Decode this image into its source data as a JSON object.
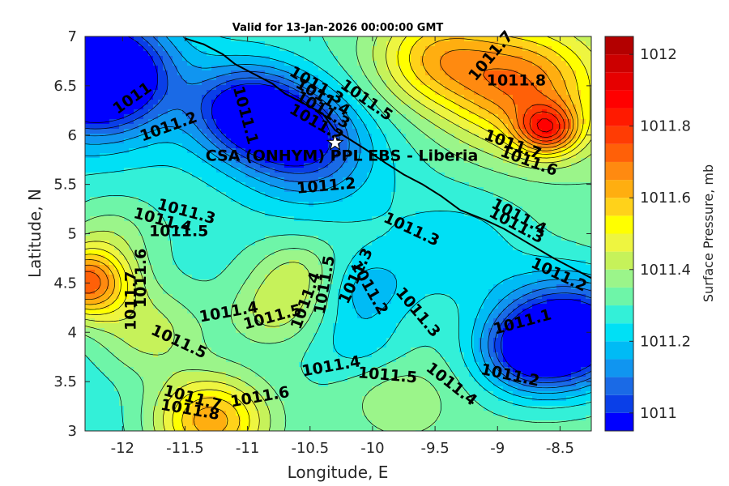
{
  "title": "Valid for 13-Jan-2026 00:00:00 GMT",
  "chart_data": {
    "type": "contour-map",
    "xlabel": "Longitude, E",
    "ylabel": "Latitude, N",
    "xlim": [
      -12.3,
      -8.25
    ],
    "ylim": [
      3,
      7
    ],
    "x_ticks": [
      "-12",
      "-11.5",
      "-11",
      "-10.5",
      "-10",
      "-9.5",
      "-9",
      "-8.5"
    ],
    "x_tick_values": [
      -12,
      -11.5,
      -11,
      -10.5,
      -10,
      -9.5,
      -9,
      -8.5
    ],
    "y_ticks": [
      "3",
      "3.5",
      "4",
      "4.5",
      "5",
      "5.5",
      "6",
      "6.5",
      "7"
    ],
    "y_tick_values": [
      3,
      3.5,
      4,
      4.5,
      5,
      5.5,
      6,
      6.5,
      7
    ],
    "colorbar": {
      "label": "Surface Pressure, mb",
      "range": [
        1010.95,
        1012.05
      ],
      "ticks": [
        "1011",
        "1011.2",
        "1011.4",
        "1011.6",
        "1011.8",
        "1012"
      ],
      "tick_values": [
        1011,
        1011.2,
        1011.4,
        1011.6,
        1011.8,
        1012
      ],
      "levels": [
        1010.95,
        1011.0,
        1011.05,
        1011.1,
        1011.15,
        1011.2,
        1011.25,
        1011.3,
        1011.35,
        1011.4,
        1011.45,
        1011.5,
        1011.55,
        1011.6,
        1011.65,
        1011.7,
        1011.75,
        1011.8,
        1011.85,
        1011.9,
        1011.95,
        1012.0,
        1012.05
      ],
      "colors": [
        "#0000ff",
        "#0a3fe8",
        "#1a6ae6",
        "#1095f0",
        "#00bbf5",
        "#00e0f5",
        "#33f0d8",
        "#6ef5a8",
        "#9bf58a",
        "#c6f25a",
        "#eef540",
        "#ffff00",
        "#ffd21a",
        "#ffae10",
        "#ff8a10",
        "#ff6008",
        "#ff3c04",
        "#ff1a00",
        "#ff0000",
        "#e60000",
        "#cc0000",
        "#b30000"
      ]
    },
    "site": {
      "label": "CSA (ONHYM) PPL EBS  - Liberia",
      "lon": -10.3,
      "lat": 5.92,
      "marker": "star"
    },
    "contour_labels": [
      {
        "text": "1011",
        "lon": -11.92,
        "lat": 6.37,
        "angle": -35
      },
      {
        "text": "1011.2",
        "lon": -11.63,
        "lat": 6.08,
        "angle": -20
      },
      {
        "text": "1011.1",
        "lon": -11.02,
        "lat": 6.2,
        "angle": 75
      },
      {
        "text": "1011.3",
        "lon": -10.45,
        "lat": 6.5,
        "angle": 30
      },
      {
        "text": "1011.4",
        "lon": -10.4,
        "lat": 6.38,
        "angle": 30
      },
      {
        "text": "1011.3",
        "lon": -10.4,
        "lat": 6.25,
        "angle": 30
      },
      {
        "text": "1011.2",
        "lon": -10.45,
        "lat": 6.12,
        "angle": 30
      },
      {
        "text": "1011.5",
        "lon": -10.05,
        "lat": 6.35,
        "angle": 35
      },
      {
        "text": "1011.7",
        "lon": -9.05,
        "lat": 6.8,
        "angle": -50
      },
      {
        "text": "1011.8",
        "lon": -8.85,
        "lat": 6.55,
        "angle": 0
      },
      {
        "text": "1011.7",
        "lon": -8.88,
        "lat": 5.9,
        "angle": 20
      },
      {
        "text": "1011.6",
        "lon": -8.75,
        "lat": 5.73,
        "angle": 20
      },
      {
        "text": "1011.2",
        "lon": -10.37,
        "lat": 5.48,
        "angle": -5
      },
      {
        "text": "1011.3",
        "lon": -11.49,
        "lat": 5.22,
        "angle": 15
      },
      {
        "text": "1011.4",
        "lon": -11.68,
        "lat": 5.13,
        "angle": 15
      },
      {
        "text": "1011.5",
        "lon": -11.55,
        "lat": 5.02,
        "angle": 0
      },
      {
        "text": "1011.3",
        "lon": -9.69,
        "lat": 5.04,
        "angle": 25
      },
      {
        "text": "1011.4",
        "lon": -8.83,
        "lat": 5.17,
        "angle": 28
      },
      {
        "text": "1011.3",
        "lon": -8.85,
        "lat": 5.08,
        "angle": 28
      },
      {
        "text": "1011.2",
        "lon": -8.51,
        "lat": 4.58,
        "angle": 25
      },
      {
        "text": "1011.6",
        "lon": -11.85,
        "lat": 4.55,
        "angle": -90
      },
      {
        "text": "1011.7",
        "lon": -11.93,
        "lat": 4.32,
        "angle": -90
      },
      {
        "text": "1011.5",
        "lon": -10.38,
        "lat": 4.48,
        "angle": -80
      },
      {
        "text": "1011.3",
        "lon": -10.13,
        "lat": 4.57,
        "angle": -65
      },
      {
        "text": "1011.2",
        "lon": -10.03,
        "lat": 4.45,
        "angle": 60
      },
      {
        "text": "1011.4",
        "lon": -10.53,
        "lat": 4.32,
        "angle": -70
      },
      {
        "text": "1011.4",
        "lon": -11.15,
        "lat": 4.2,
        "angle": -10
      },
      {
        "text": "1011.5",
        "lon": -10.8,
        "lat": 4.15,
        "angle": -15
      },
      {
        "text": "1011.3",
        "lon": -9.64,
        "lat": 4.2,
        "angle": 50
      },
      {
        "text": "1011.1",
        "lon": -8.8,
        "lat": 4.1,
        "angle": -15
      },
      {
        "text": "1011.5",
        "lon": -11.55,
        "lat": 3.9,
        "angle": 25
      },
      {
        "text": "1011.4",
        "lon": -10.33,
        "lat": 3.65,
        "angle": -10
      },
      {
        "text": "1011.5",
        "lon": -9.88,
        "lat": 3.56,
        "angle": 5
      },
      {
        "text": "1011.4",
        "lon": -9.37,
        "lat": 3.47,
        "angle": 38
      },
      {
        "text": "1011.2",
        "lon": -8.9,
        "lat": 3.56,
        "angle": 12
      },
      {
        "text": "1011.6",
        "lon": -10.9,
        "lat": 3.34,
        "angle": -10
      },
      {
        "text": "1011.7",
        "lon": -11.44,
        "lat": 3.33,
        "angle": 15
      },
      {
        "text": "1011.8",
        "lon": -11.46,
        "lat": 3.21,
        "angle": 10
      }
    ],
    "field_sources": [
      {
        "lon": -12.2,
        "lat": 6.6,
        "amp": -0.55,
        "r": 0.55
      },
      {
        "lon": -11.0,
        "lat": 6.25,
        "amp": -0.35,
        "r": 0.45
      },
      {
        "lon": -10.6,
        "lat": 6.0,
        "amp": -0.25,
        "r": 0.45
      },
      {
        "lon": -10.4,
        "lat": 5.7,
        "amp": -0.12,
        "r": 0.6
      },
      {
        "lon": -8.4,
        "lat": 4.0,
        "amp": -0.45,
        "r": 0.55
      },
      {
        "lon": -8.75,
        "lat": 3.8,
        "amp": -0.25,
        "r": 0.4
      },
      {
        "lon": -9.3,
        "lat": 4.85,
        "amp": -0.1,
        "r": 0.6
      },
      {
        "lon": -10.05,
        "lat": 4.45,
        "amp": -0.12,
        "r": 0.35
      },
      {
        "lon": -10.1,
        "lat": 3.9,
        "amp": -0.08,
        "r": 0.35
      },
      {
        "lon": -8.8,
        "lat": 6.5,
        "amp": 0.35,
        "r": 0.6
      },
      {
        "lon": -9.5,
        "lat": 6.8,
        "amp": 0.25,
        "r": 0.5
      },
      {
        "lon": -8.6,
        "lat": 6.05,
        "amp": 0.35,
        "r": 0.25
      },
      {
        "lon": -12.3,
        "lat": 4.5,
        "amp": 0.45,
        "r": 0.35
      },
      {
        "lon": -11.8,
        "lat": 4.0,
        "amp": 0.15,
        "r": 0.45
      },
      {
        "lon": -11.3,
        "lat": 3.1,
        "amp": 0.35,
        "r": 0.45
      },
      {
        "lon": -10.6,
        "lat": 4.6,
        "amp": 0.12,
        "r": 0.35
      },
      {
        "lon": -10.8,
        "lat": 4.2,
        "amp": 0.12,
        "r": 0.35
      },
      {
        "lon": -12.1,
        "lat": 5.0,
        "amp": 0.1,
        "r": 0.4
      },
      {
        "lon": -9.8,
        "lat": 3.3,
        "amp": 0.08,
        "r": 0.4
      }
    ],
    "field_base": {
      "intercept": 1011.3,
      "lat_slope": 0.0,
      "lon_slope": 0.02
    },
    "coastline": [
      [
        -11.5,
        6.98
      ],
      [
        -11.35,
        6.92
      ],
      [
        -11.2,
        6.82
      ],
      [
        -11.1,
        6.72
      ],
      [
        -10.95,
        6.62
      ],
      [
        -10.8,
        6.52
      ],
      [
        -10.7,
        6.42
      ],
      [
        -10.55,
        6.32
      ],
      [
        -10.4,
        6.22
      ],
      [
        -10.3,
        6.05
      ],
      [
        -10.2,
        5.97
      ],
      [
        -10.05,
        5.85
      ],
      [
        -9.9,
        5.72
      ],
      [
        -9.75,
        5.6
      ],
      [
        -9.6,
        5.5
      ],
      [
        -9.45,
        5.38
      ],
      [
        -9.3,
        5.24
      ],
      [
        -9.1,
        5.14
      ],
      [
        -8.95,
        5.05
      ],
      [
        -8.75,
        4.9
      ],
      [
        -8.55,
        4.75
      ],
      [
        -8.4,
        4.65
      ],
      [
        -8.25,
        4.55
      ]
    ]
  }
}
